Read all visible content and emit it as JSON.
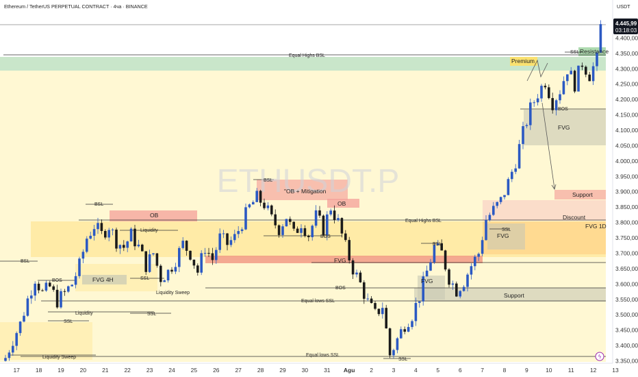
{
  "header": {
    "title": "Ethereum / TetherUS PERPETUAL CONTRACT · 4ча · BINANCE",
    "currency": "USDT",
    "watermark": "ETHUSDT.P"
  },
  "price_tag": {
    "price": "4.445,99",
    "countdown": "03:18:03"
  },
  "colors": {
    "bull": "#2b59c3",
    "bear": "#1b1b1b",
    "green_zone": "#a5d6a7",
    "yellow_zone": "#fff3b0",
    "orange_zone": "#ffcc80",
    "red_zone": "#f4a09a",
    "gray_zone": "#c8c8b4",
    "tag_bg": "#131722"
  },
  "chart_data": {
    "type": "candlestick",
    "ylim": [
      3340,
      4490
    ],
    "y_ticks": [
      3350,
      3400,
      3450,
      3500,
      3550,
      3600,
      3650,
      3700,
      3750,
      3800,
      3850,
      3900,
      3950,
      4000,
      4050,
      4100,
      4150,
      4200,
      4250,
      4300,
      4350,
      4400
    ],
    "y_tick_labels": [
      "3.350,00",
      "3.400,00",
      "3.450,00",
      "3.500,00",
      "3.550,00",
      "3.600,00",
      "3.650,00",
      "3.700,00",
      "3.750,00",
      "3.800,00",
      "3.850,00",
      "3.900,00",
      "3.950,00",
      "4.000,00",
      "4.050,00",
      "4.100,00",
      "4.150,00",
      "4.200,00",
      "4.250,00",
      "4.300,00",
      "4.350,00",
      "4.400,00"
    ],
    "x_ticks": [
      {
        "label": "17",
        "bar": 3
      },
      {
        "label": "18",
        "bar": 9
      },
      {
        "label": "19",
        "bar": 15
      },
      {
        "label": "20",
        "bar": 21
      },
      {
        "label": "21",
        "bar": 27
      },
      {
        "label": "22",
        "bar": 33
      },
      {
        "label": "23",
        "bar": 39
      },
      {
        "label": "24",
        "bar": 45
      },
      {
        "label": "25",
        "bar": 51
      },
      {
        "label": "26",
        "bar": 57
      },
      {
        "label": "27",
        "bar": 63
      },
      {
        "label": "28",
        "bar": 69
      },
      {
        "label": "29",
        "bar": 75
      },
      {
        "label": "30",
        "bar": 81
      },
      {
        "label": "31",
        "bar": 87
      },
      {
        "label": "Agu",
        "bar": 93
      },
      {
        "label": "2",
        "bar": 99
      },
      {
        "label": "3",
        "bar": 105
      },
      {
        "label": "4",
        "bar": 111
      },
      {
        "label": "5",
        "bar": 117
      },
      {
        "label": "6",
        "bar": 123
      },
      {
        "label": "7",
        "bar": 129
      },
      {
        "label": "8",
        "bar": 135
      },
      {
        "label": "9",
        "bar": 141
      },
      {
        "label": "10",
        "bar": 147
      },
      {
        "label": "11",
        "bar": 153
      },
      {
        "label": "12",
        "bar": 159
      },
      {
        "label": "13",
        "bar": 165
      }
    ],
    "close_anchors": [
      [
        0,
        3360
      ],
      [
        2,
        3420
      ],
      [
        4,
        3470
      ],
      [
        6,
        3550
      ],
      [
        8,
        3620
      ],
      [
        10,
        3570
      ],
      [
        12,
        3590
      ],
      [
        14,
        3545
      ],
      [
        16,
        3570
      ],
      [
        18,
        3600
      ],
      [
        20,
        3660
      ],
      [
        22,
        3750
      ],
      [
        24,
        3790
      ],
      [
        26,
        3760
      ],
      [
        28,
        3790
      ],
      [
        30,
        3740
      ],
      [
        32,
        3720
      ],
      [
        34,
        3760
      ],
      [
        36,
        3720
      ],
      [
        38,
        3660
      ],
      [
        40,
        3700
      ],
      [
        42,
        3620
      ],
      [
        44,
        3640
      ],
      [
        46,
        3680
      ],
      [
        48,
        3730
      ],
      [
        50,
        3700
      ],
      [
        52,
        3640
      ],
      [
        54,
        3720
      ],
      [
        56,
        3680
      ],
      [
        58,
        3750
      ],
      [
        60,
        3730
      ],
      [
        62,
        3750
      ],
      [
        64,
        3800
      ],
      [
        66,
        3850
      ],
      [
        68,
        3880
      ],
      [
        70,
        3860
      ],
      [
        72,
        3810
      ],
      [
        74,
        3780
      ],
      [
        76,
        3820
      ],
      [
        78,
        3760
      ],
      [
        80,
        3800
      ],
      [
        82,
        3760
      ],
      [
        84,
        3820
      ],
      [
        86,
        3780
      ],
      [
        88,
        3850
      ],
      [
        90,
        3800
      ],
      [
        92,
        3720
      ],
      [
        94,
        3650
      ],
      [
        96,
        3600
      ],
      [
        98,
        3540
      ],
      [
        100,
        3500
      ],
      [
        102,
        3530
      ],
      [
        104,
        3370
      ],
      [
        106,
        3420
      ],
      [
        108,
        3470
      ],
      [
        110,
        3500
      ],
      [
        112,
        3560
      ],
      [
        114,
        3640
      ],
      [
        116,
        3720
      ],
      [
        118,
        3700
      ],
      [
        120,
        3620
      ],
      [
        122,
        3580
      ],
      [
        124,
        3610
      ],
      [
        126,
        3660
      ],
      [
        128,
        3700
      ],
      [
        130,
        3810
      ],
      [
        132,
        3840
      ],
      [
        134,
        3870
      ],
      [
        136,
        3930
      ],
      [
        138,
        4000
      ],
      [
        140,
        4090
      ],
      [
        142,
        4170
      ],
      [
        144,
        4220
      ],
      [
        146,
        4260
      ],
      [
        148,
        4190
      ],
      [
        150,
        4230
      ],
      [
        152,
        4300
      ],
      [
        154,
        4250
      ],
      [
        156,
        4320
      ],
      [
        158,
        4280
      ],
      [
        160,
        4330
      ],
      [
        161,
        4445
      ]
    ],
    "levels": [
      {
        "name": "Equal Highs BSL",
        "value": 4345
      },
      {
        "name": "Equal Highs BSL",
        "value": 3812
      },
      {
        "name": "Equal lows SSL",
        "value": 3567
      },
      {
        "name": "Equal lows SSL",
        "value": 3362
      },
      {
        "name": "BOS",
        "value": 3590
      },
      {
        "name": "BOS",
        "value": 4173
      }
    ],
    "zones": [
      {
        "label": "Premium",
        "from": 4290,
        "to": 4345
      },
      {
        "label": "Resistance",
        "from": 4335,
        "to": 4360
      },
      {
        "label": "FVG",
        "from": 4055,
        "to": 4170
      },
      {
        "label": "Support",
        "from": 3880,
        "to": 3910
      },
      {
        "label": "Discount",
        "from": 3800,
        "to": 3820
      },
      {
        "label": "FVG 1D",
        "from": 3700,
        "to": 3820
      },
      {
        "label": "OB",
        "from": 3810,
        "to": 3845
      },
      {
        "label": "\"OB + Mitigation",
        "from": 3865,
        "to": 3940
      },
      {
        "label": "OB",
        "from": 3855,
        "to": 3880
      },
      {
        "label": "FVG 4H",
        "from": 3605,
        "to": 3638
      },
      {
        "label": "FVG",
        "from": 3670,
        "to": 3700
      },
      {
        "label": "FVG",
        "from": 3550,
        "to": 3645
      },
      {
        "label": "Support",
        "from": 3548,
        "to": 3590
      },
      {
        "label": "FVG",
        "from": 3720,
        "to": 3790
      },
      {
        "label": "SSL",
        "from": 3790,
        "to": 3790
      }
    ],
    "annotations": [
      "BSL",
      "BSL",
      "BSL",
      "BSL",
      "BOS",
      "BOS",
      "BOS",
      "SSL",
      "SSL",
      "SSL",
      "SSL",
      "SSL",
      "Liquidity",
      "Liquidity",
      "Liquidity Sweep",
      "Liquidity Sweep",
      "Resistance",
      "Premium",
      "Discount",
      "Support",
      "Support",
      "FVG",
      "FVG",
      "FVG",
      "FVG",
      "FVG 4H",
      "FVG 1D",
      "OB",
      "OB",
      "\"OB + Mitigation",
      "SSL"
    ]
  }
}
